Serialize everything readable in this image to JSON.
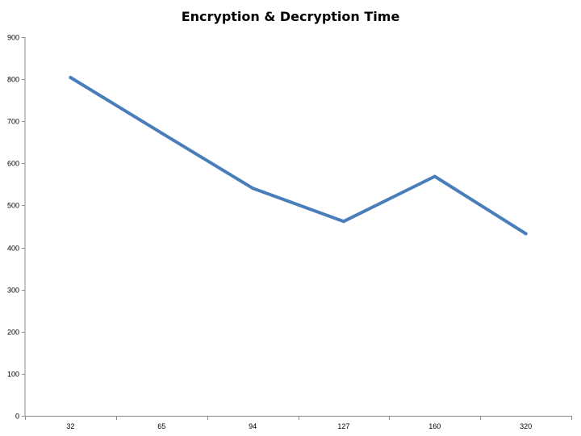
{
  "chart_data": {
    "type": "line",
    "title": "Encryption & Decryption Time",
    "xlabel": "",
    "ylabel": "",
    "categories": [
      "32",
      "65",
      "94",
      "127",
      "160",
      "320"
    ],
    "series": [
      {
        "values": [
          804,
          672,
          541,
          462,
          569,
          433
        ]
      }
    ],
    "ylim": [
      0,
      900
    ],
    "y_ticks": [
      0,
      100,
      200,
      300,
      400,
      500,
      600,
      700,
      800,
      900
    ],
    "grid": false,
    "legend": "none",
    "line_color": "#4a7ebb"
  }
}
